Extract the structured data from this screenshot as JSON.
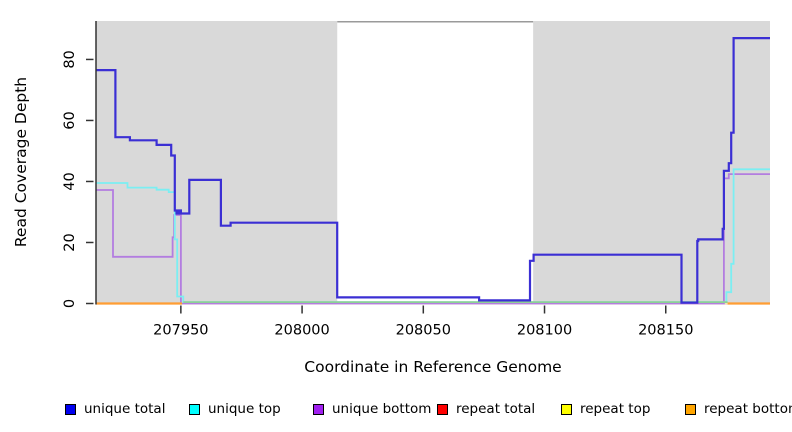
{
  "chart_data": {
    "type": "line",
    "subtype": "step-coverage-plot",
    "title": "",
    "xlabel": "Coordinate in Reference Genome",
    "ylabel": "Read Coverage Depth",
    "xlim": [
      207915,
      208193
    ],
    "ylim": [
      0,
      92.6
    ],
    "x_ticks": [
      207950,
      208000,
      208050,
      208100,
      208150
    ],
    "y_ticks": [
      0,
      20,
      40,
      60,
      80
    ],
    "grid": false,
    "background_bands": {
      "comment": "gray shaded repeat regions; white gap between them",
      "color": "#d9d9d9",
      "regions": [
        [
          207915,
          208014.5
        ],
        [
          208095.3,
          208193
        ]
      ]
    },
    "gap_top_edge": {
      "color": "#9a9a9a",
      "from": 208014.5,
      "to": 208095.3
    },
    "series": [
      {
        "name": "repeat total",
        "color": "#e00000",
        "width": 1.2,
        "points": [
          [
            207915,
            0
          ]
        ],
        "x_end": 208193,
        "comment": "zero everywhere, hidden under other zero lines"
      },
      {
        "name": "repeat top",
        "color": "#efe6ae",
        "width": 1.5,
        "points": [
          [
            207915,
            0
          ]
        ],
        "x_end": 208193,
        "comment": "zero everywhere, faint pale-yellow line at baseline"
      },
      {
        "name": "unique bottom",
        "color": "#b37de0",
        "width": 1.8,
        "points": [
          [
            207915,
            37.2
          ],
          [
            207922,
            15.3
          ],
          [
            207946.6,
            21.7
          ],
          [
            207947.2,
            29
          ],
          [
            207950,
            0
          ],
          [
            208174,
            41
          ],
          [
            208176,
            42.4
          ]
        ],
        "x_end": 208193
      },
      {
        "name": "unique top",
        "color": "#7beef2",
        "width": 1.8,
        "points": [
          [
            207915,
            39.5
          ],
          [
            207928,
            38
          ],
          [
            207940,
            37.3
          ],
          [
            207945,
            36.5
          ],
          [
            207947.5,
            21
          ],
          [
            207948.5,
            2.3
          ],
          [
            207951,
            0.45
          ],
          [
            208175,
            3.7
          ],
          [
            208177,
            13
          ],
          [
            208178,
            44
          ]
        ],
        "x_end": 208193
      },
      {
        "name": "zero overlap",
        "color": "#8ecf96",
        "width": 1.7,
        "points": [
          [
            207951,
            0.45
          ]
        ],
        "x_end": 208175.5,
        "comment": "pale green line where zero-coverage lines overlap between the repeat flanks"
      },
      {
        "name": "unique total",
        "color": "#3b2fd4",
        "width": 2.2,
        "points": [
          [
            207915,
            76.5
          ],
          [
            207923,
            54.5
          ],
          [
            207929,
            53.5
          ],
          [
            207940,
            52
          ],
          [
            207946,
            48.5
          ],
          [
            207947.5,
            30.5
          ],
          [
            207948.2,
            29.5
          ],
          [
            207949.1,
            30.5
          ],
          [
            207950,
            29.5
          ],
          [
            207953.5,
            40.5
          ],
          [
            207966.5,
            25.5
          ],
          [
            207970.5,
            26.5
          ],
          [
            208014.5,
            2
          ],
          [
            208073,
            1
          ],
          [
            208094,
            14
          ],
          [
            208095.5,
            16
          ],
          [
            208156.5,
            0.3
          ],
          [
            208163,
            20.5
          ],
          [
            208163.4,
            21
          ],
          [
            208173.5,
            24.5
          ],
          [
            208174,
            43.5
          ],
          [
            208176,
            46
          ],
          [
            208177,
            56
          ],
          [
            208178,
            87
          ]
        ],
        "x_end": 208193
      },
      {
        "name": "repeat bottom",
        "color": "#ff9d33",
        "width": 2.2,
        "segments": [
          {
            "points": [
              [
                207915,
                0
              ]
            ],
            "x_end": 207950.5
          },
          {
            "points": [
              [
                208175.5,
                0
              ]
            ],
            "x_end": 208193
          }
        ]
      }
    ],
    "legend_position": "bottom"
  },
  "legend": {
    "items": [
      {
        "label": "unique total",
        "fill": "#0000f0"
      },
      {
        "label": "unique top",
        "fill": "#00ffff"
      },
      {
        "label": "unique bottom",
        "fill": "#a020f0"
      },
      {
        "label": "repeat total",
        "fill": "#ff0000"
      },
      {
        "label": "repeat top",
        "fill": "#ffff00"
      },
      {
        "label": "repeat bottom",
        "fill": "#ffa500"
      }
    ]
  }
}
